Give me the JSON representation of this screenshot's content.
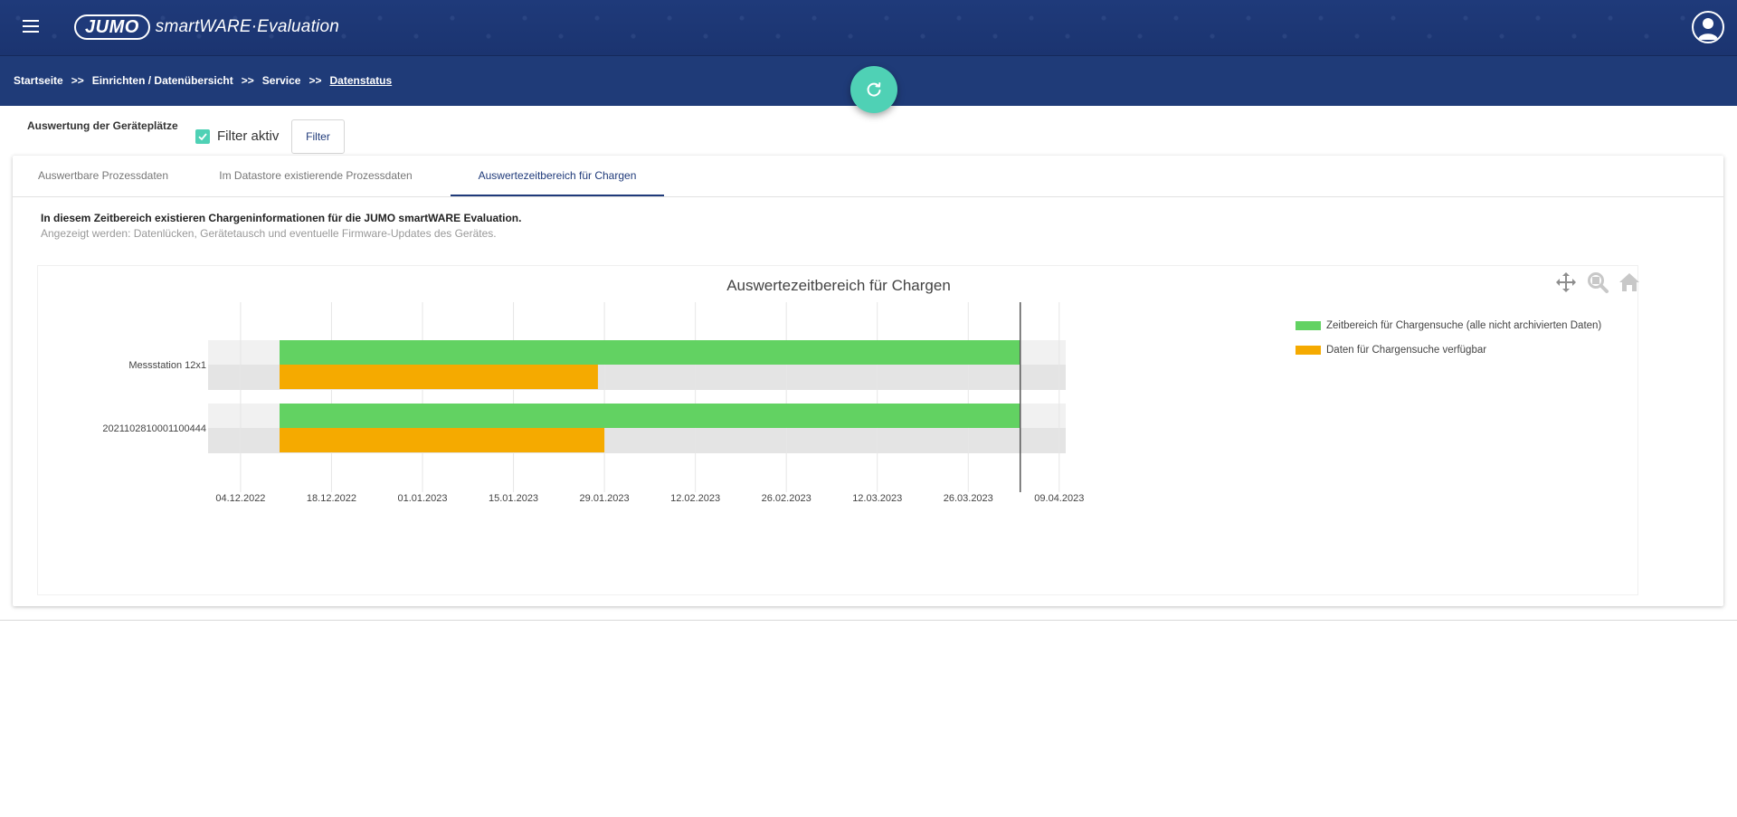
{
  "header": {
    "logo_brand": "JUMO",
    "logo_product": "smartWARE·Evaluation",
    "menu_icon": "hamburger-menu-icon",
    "user_icon": "user-avatar-icon"
  },
  "breadcrumb": {
    "items": [
      "Startseite",
      "Einrichten / Datenübersicht",
      "Service",
      "Datenstatus"
    ],
    "separator": ">>"
  },
  "refresh_icon": "refresh-icon",
  "filter": {
    "title": "Auswertung der Geräteplätze",
    "checkbox_label": "Filter aktiv",
    "checked": true,
    "button_label": "Filter"
  },
  "tabs": [
    {
      "label": "Auswertbare Prozessdaten",
      "active": false
    },
    {
      "label": "Im Datastore existierende Prozessdaten",
      "active": false
    },
    {
      "label": "Auswertezeitbereich für Chargen",
      "active": true
    }
  ],
  "info": {
    "headline": "In diesem Zeitbereich existieren Chargeninformationen für die JUMO smartWARE Evaluation.",
    "subline": "Angezeigt werden: Datenlücken, Gerätetausch und eventuelle Firmware-Updates des Gerätes."
  },
  "modebar": {
    "pan_icon": "pan-move-icon",
    "zoom_icon": "zoom-magnifier-icon",
    "home_icon": "home-reset-icon"
  },
  "colors": {
    "header_bg": "#1f3a7a",
    "accent": "#4fd1b5",
    "green_bar": "#62d262",
    "orange_bar": "#f5aa00"
  },
  "chart_data": {
    "type": "bar",
    "orientation": "horizontal",
    "title": "Auswertezeitbereich für Chargen",
    "categories": [
      "Messstation 12x1",
      "2021102810001100444"
    ],
    "x_axis_type": "date",
    "x_ticks": [
      "04.12.2022",
      "18.12.2022",
      "01.01.2023",
      "15.01.2023",
      "29.01.2023",
      "12.02.2023",
      "26.02.2023",
      "12.03.2023",
      "26.03.2023",
      "09.04.2023"
    ],
    "xlim": [
      "2022-11-29",
      "2023-04-10"
    ],
    "series": [
      {
        "name": "Zeitbereich für Chargensuche (alle nicht archivierten Daten)",
        "color": "#62d262",
        "ranges": [
          {
            "category": "Messstation 12x1",
            "start": "2022-12-10",
            "end": "2023-04-03"
          },
          {
            "category": "2021102810001100444",
            "start": "2022-12-10",
            "end": "2023-04-03"
          }
        ]
      },
      {
        "name": "Daten für Chargensuche verfügbar",
        "color": "#f5aa00",
        "ranges": [
          {
            "category": "Messstation 12x1",
            "start": "2022-12-10",
            "end": "2023-01-28"
          },
          {
            "category": "2021102810001100444",
            "start": "2022-12-10",
            "end": "2023-01-29"
          }
        ]
      }
    ],
    "vertical_line": "2023-04-03",
    "grid": true,
    "legend_position": "right"
  }
}
